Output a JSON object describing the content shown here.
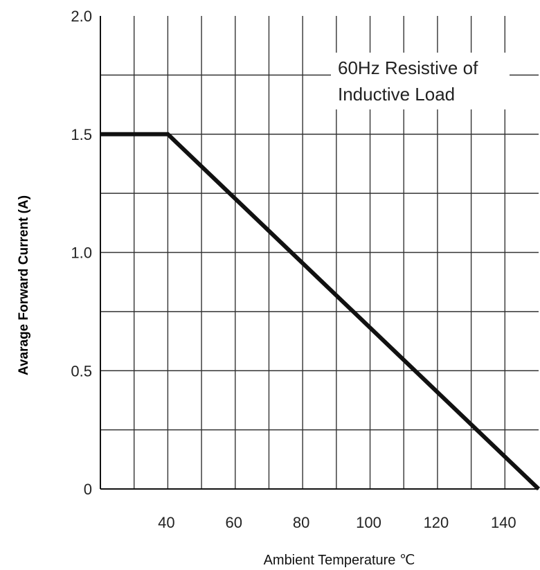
{
  "chart_data": {
    "type": "line",
    "title": "",
    "xlabel": "Ambient Temperature ℃",
    "ylabel": "Avarage Forward Current (A)",
    "xlim": [
      20,
      150
    ],
    "ylim": [
      0,
      2.0
    ],
    "x_ticks": [
      40,
      60,
      80,
      100,
      120,
      140
    ],
    "x_tick_labels": [
      "40",
      "60",
      "80",
      "100",
      "120",
      "140"
    ],
    "y_ticks": [
      0,
      0.5,
      1.0,
      1.5,
      2.0
    ],
    "y_tick_labels": [
      "0",
      "0.5",
      "1.0",
      "1.5",
      "2.0"
    ],
    "grid": true,
    "annotation": [
      "60Hz Resistive of",
      "Inductive Load"
    ],
    "series": [
      {
        "x": [
          20,
          40,
          150
        ],
        "y": [
          1.5,
          1.5,
          0
        ],
        "color": "#111111"
      }
    ]
  }
}
